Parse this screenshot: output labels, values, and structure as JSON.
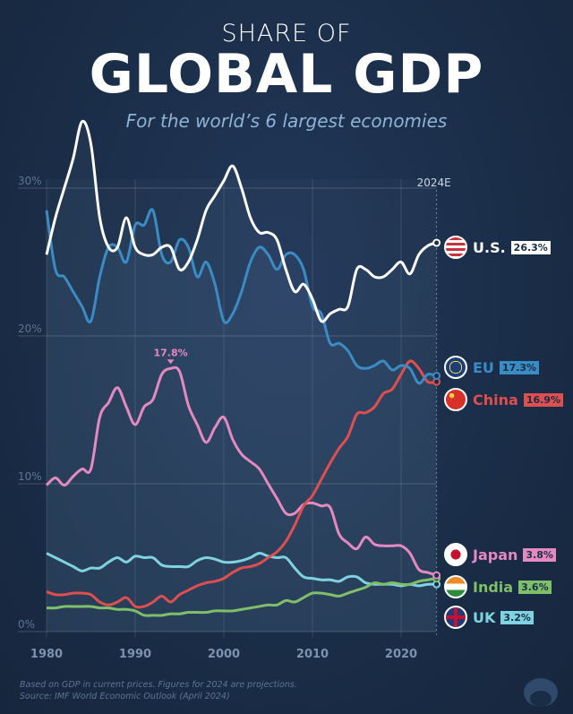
{
  "header": {
    "kicker": "SHARE OF",
    "title": "GLOBAL GDP",
    "subtitle": "For the world’s 6 largest economies"
  },
  "footer": {
    "note": "Based on GDP in current prices. Figures for 2024 are projections.",
    "source": "Source: IMF World Economic Outlook (April 2024)"
  },
  "chart_data": {
    "type": "line",
    "xlim": [
      1980,
      2024
    ],
    "ylim": [
      0,
      30
    ],
    "x_ticks": [
      "1980",
      "1990",
      "2000",
      "2010",
      "2020"
    ],
    "y_ticks": [
      "0%",
      "10%",
      "20%",
      "30%"
    ],
    "marker_label": "2024E",
    "peak_annotation": {
      "series": "Japan",
      "year": 1994,
      "label": "17.8%"
    },
    "grid": true,
    "years": [
      1980,
      1981,
      1982,
      1983,
      1984,
      1985,
      1986,
      1987,
      1988,
      1989,
      1990,
      1991,
      1992,
      1993,
      1994,
      1995,
      1996,
      1997,
      1998,
      1999,
      2000,
      2001,
      2002,
      2003,
      2004,
      2005,
      2006,
      2007,
      2008,
      2009,
      2010,
      2011,
      2012,
      2013,
      2014,
      2015,
      2016,
      2017,
      2018,
      2019,
      2020,
      2021,
      2022,
      2023,
      2024
    ],
    "series": [
      {
        "name": "U.S.",
        "label": "26.3%",
        "color": "#ffffff",
        "flag": "us-flag-icon",
        "values": [
          25.5,
          28,
          30,
          32,
          34.5,
          33,
          28,
          26,
          26,
          28,
          26,
          25.5,
          25.5,
          26,
          26,
          24.5,
          25,
          26.5,
          28.5,
          29.5,
          30.5,
          31.5,
          30,
          28,
          27,
          27,
          26.5,
          24.5,
          23,
          23.5,
          22.5,
          21,
          21.5,
          21.8,
          22,
          24.5,
          24.5,
          24,
          24,
          24.5,
          25,
          24.2,
          25.5,
          26.1,
          26.3
        ]
      },
      {
        "name": "EU",
        "label": "17.3%",
        "color": "#3b8cc4",
        "flag": "eu-flag-icon",
        "values": [
          28.5,
          24.5,
          24,
          23,
          22,
          21,
          24,
          26,
          26,
          25,
          27.5,
          27.5,
          28.5,
          25.5,
          25,
          26.5,
          26,
          24,
          25,
          23.5,
          21,
          21.5,
          23,
          25,
          26,
          25.5,
          24.5,
          25.5,
          25.5,
          24.5,
          22,
          21.5,
          19.5,
          19.5,
          19,
          18,
          17.8,
          18,
          18.3,
          17.7,
          18,
          17.8,
          16.8,
          17.4,
          17.3
        ]
      },
      {
        "name": "China",
        "label": "16.9%",
        "color": "#e04f4f",
        "flag": "china-flag-icon",
        "values": [
          2.7,
          2.5,
          2.5,
          2.6,
          2.6,
          2.5,
          2,
          1.8,
          2,
          2.3,
          1.7,
          1.7,
          2,
          2.4,
          2,
          2.5,
          2.8,
          3.1,
          3.3,
          3.4,
          3.6,
          4,
          4.3,
          4.4,
          4.6,
          5,
          5.4,
          6.1,
          7.2,
          8.5,
          9.2,
          10.3,
          11.4,
          12.4,
          13.2,
          14.7,
          14.8,
          15.2,
          16.1,
          16.4,
          17.4,
          18.3,
          17.8,
          16.9,
          16.9
        ]
      },
      {
        "name": "Japan",
        "label": "3.8%",
        "color": "#e58ac0",
        "flag": "japan-flag-icon",
        "values": [
          9.9,
          10.4,
          9.9,
          10.5,
          11,
          11,
          14.5,
          15.5,
          16.5,
          15.2,
          14,
          15.2,
          15.7,
          17.4,
          17.8,
          17.6,
          15.3,
          14,
          12.8,
          13.8,
          14.5,
          13,
          12,
          11.5,
          11,
          10,
          9,
          8,
          8,
          8.6,
          8.7,
          8.5,
          8.4,
          6.6,
          6,
          5.6,
          6.4,
          5.9,
          5.8,
          5.8,
          5.8,
          5.3,
          4.2,
          4.0,
          3.8
        ]
      },
      {
        "name": "India",
        "label": "3.6%",
        "color": "#7fbf6a",
        "flag": "india-flag-icon",
        "values": [
          1.6,
          1.6,
          1.7,
          1.7,
          1.7,
          1.7,
          1.6,
          1.6,
          1.5,
          1.5,
          1.4,
          1.1,
          1.1,
          1.1,
          1.2,
          1.2,
          1.3,
          1.3,
          1.3,
          1.4,
          1.4,
          1.4,
          1.5,
          1.6,
          1.7,
          1.8,
          1.8,
          2.1,
          2.0,
          2.3,
          2.6,
          2.6,
          2.5,
          2.4,
          2.6,
          2.8,
          3.0,
          3.3,
          3.2,
          3.3,
          3.2,
          3.2,
          3.4,
          3.5,
          3.6
        ]
      },
      {
        "name": "UK",
        "label": "3.2%",
        "color": "#7fd3e0",
        "flag": "uk-flag-icon",
        "values": [
          5.3,
          5.0,
          4.7,
          4.4,
          4.1,
          4.3,
          4.3,
          4.7,
          5.0,
          4.7,
          5.1,
          5.0,
          5.0,
          4.5,
          4.4,
          4.4,
          4.4,
          4.8,
          5.0,
          4.9,
          4.7,
          4.7,
          4.8,
          5.0,
          5.3,
          5.1,
          5.0,
          5.0,
          4.3,
          3.7,
          3.6,
          3.5,
          3.5,
          3.4,
          3.7,
          3.7,
          3.3,
          3.2,
          3.2,
          3.2,
          3.1,
          3.2,
          3.1,
          3.2,
          3.2
        ]
      }
    ]
  }
}
